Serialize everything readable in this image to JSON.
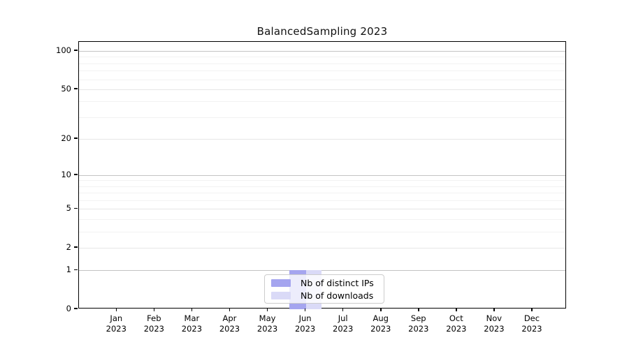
{
  "chart_data": {
    "type": "bar",
    "title": "BalancedSampling 2023",
    "categories": [
      "Jan",
      "Feb",
      "Mar",
      "Apr",
      "May",
      "Jun",
      "Jul",
      "Aug",
      "Sep",
      "Oct",
      "Nov",
      "Dec"
    ],
    "x_tick_year": "2023",
    "series": [
      {
        "name": "Nb of distinct IPs",
        "color": "#a5a5ef",
        "values": [
          0,
          0,
          0,
          0,
          0,
          1,
          0,
          0,
          0,
          0,
          0,
          0
        ]
      },
      {
        "name": "Nb of downloads",
        "color": "#dadaf7",
        "values": [
          0,
          0,
          0,
          0,
          0,
          1,
          0,
          0,
          0,
          0,
          0,
          0
        ]
      }
    ],
    "xlabel": "",
    "ylabel": "",
    "yscale": "log10(1+y)",
    "ylim": [
      0,
      118
    ],
    "y_ticks": [
      0,
      1,
      2,
      5,
      10,
      20,
      50,
      100
    ],
    "gridlines": {
      "major": [
        1,
        10,
        100
      ],
      "labeled_minor": [
        2,
        5,
        20,
        50
      ],
      "minor": [
        3,
        4,
        6,
        7,
        8,
        9,
        30,
        40,
        60,
        70,
        80,
        90
      ]
    },
    "legend_position": "lower center",
    "grid": "on"
  },
  "colors": {
    "distinct_ips": "#a5a5ef",
    "downloads": "#dadaf7",
    "grid_major": "#c3c3c3",
    "grid_mid": "#e6e6e6",
    "grid_minor": "#f2f2f2",
    "spine": "#000000",
    "background": "#ffffff"
  }
}
